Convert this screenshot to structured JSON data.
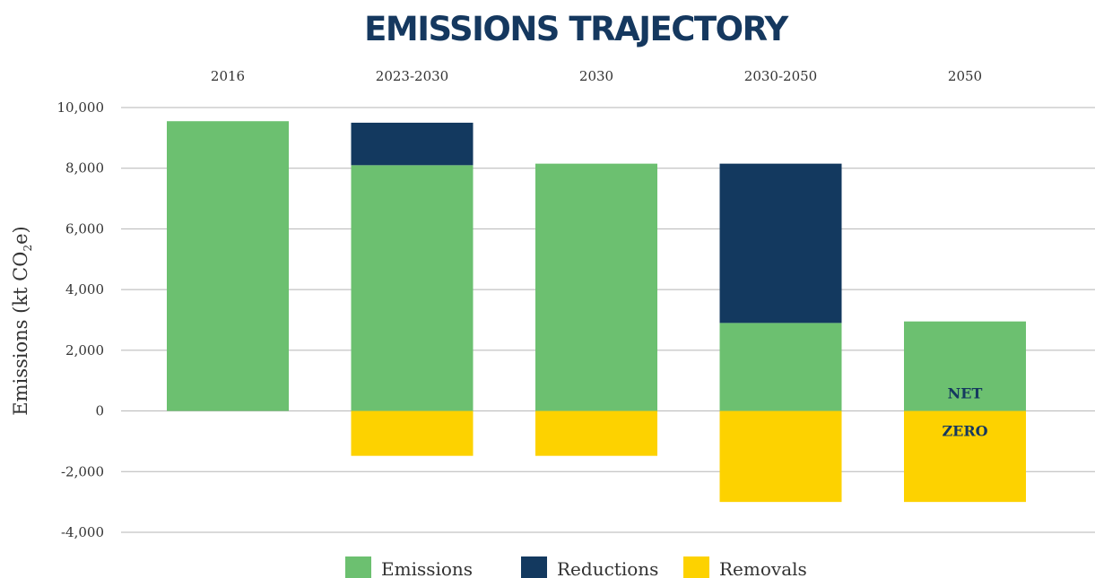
{
  "chart_data": {
    "type": "bar",
    "stacked": true,
    "title": "EMISSIONS TRAJECTORY",
    "ylabel_main": "Emissions (kt CO",
    "ylabel_sub": "2",
    "ylabel_end": "e)",
    "categories": [
      "2016",
      "2023-2030",
      "2030",
      "2030-2050",
      "2050"
    ],
    "category_labels_position": "top",
    "ylim": [
      -4000,
      10000
    ],
    "yticks": [
      10000,
      8000,
      6000,
      4000,
      2000,
      0,
      -2000,
      -4000
    ],
    "ytick_labels": [
      "10,000",
      "8,000",
      "6,000",
      "4,000",
      "2,000",
      "0",
      "-2,000",
      "-4,000"
    ],
    "grid": true,
    "legend_position": "bottom",
    "series": [
      {
        "name": "Emissions",
        "color": "#6cc070",
        "values": [
          9550,
          8100,
          8150,
          2900,
          2950
        ]
      },
      {
        "name": "Reductions",
        "color": "#13395f",
        "values": [
          0,
          1400,
          0,
          5250,
          0
        ]
      },
      {
        "name": "Removals",
        "color": "#fdd200",
        "values": [
          0,
          -1480,
          -1480,
          -3000,
          -3000
        ]
      }
    ],
    "annotations": [
      {
        "text": "NET",
        "category": "2050",
        "y": 600,
        "color": "#15385f"
      },
      {
        "text": "ZERO",
        "category": "2050",
        "y": -650,
        "color": "#15385f"
      }
    ]
  }
}
